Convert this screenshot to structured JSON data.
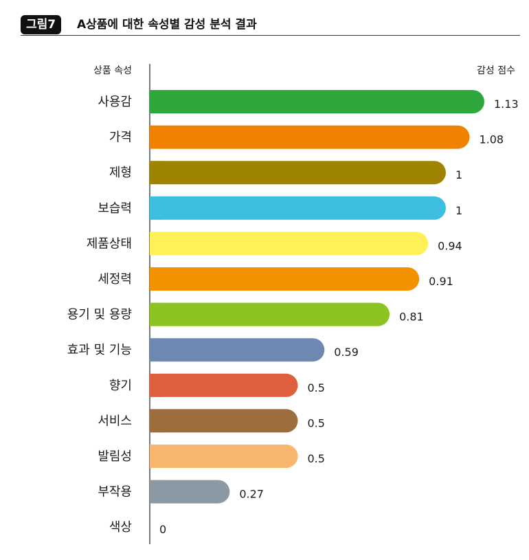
{
  "figure": {
    "badge": "그림7",
    "title": "A상품에 대한 속성별 감성 분석 결과"
  },
  "chart_data": {
    "type": "bar",
    "orientation": "horizontal",
    "category_header": "상품 속성",
    "value_header": "감성 점수",
    "categories": [
      "사용감",
      "가격",
      "제형",
      "보습력",
      "제품상태",
      "세정력",
      "용기 및 용량",
      "효과 및 기능",
      "향기",
      "서비스",
      "발림성",
      "부작용",
      "색상"
    ],
    "values": [
      1.13,
      1.08,
      1,
      1,
      0.94,
      0.91,
      0.81,
      0.59,
      0.5,
      0.5,
      0.5,
      0.27,
      0
    ],
    "value_labels": [
      "1.13",
      "1.08",
      "1",
      "1",
      "0.94",
      "0.91",
      "0.81",
      "0.59",
      "0.5",
      "0.5",
      "0.5",
      "0.27",
      "0"
    ],
    "colors": [
      "#2ea83c",
      "#ef8200",
      "#9e8400",
      "#3dbde0",
      "#fff157",
      "#f39200",
      "#8cc320",
      "#6f88b2",
      "#de5f3e",
      "#9c6e3e",
      "#f8b66e",
      "#8a99a3",
      "#cccccc"
    ],
    "xlim": [
      0,
      1.2
    ],
    "grid": false,
    "legend": "none"
  }
}
